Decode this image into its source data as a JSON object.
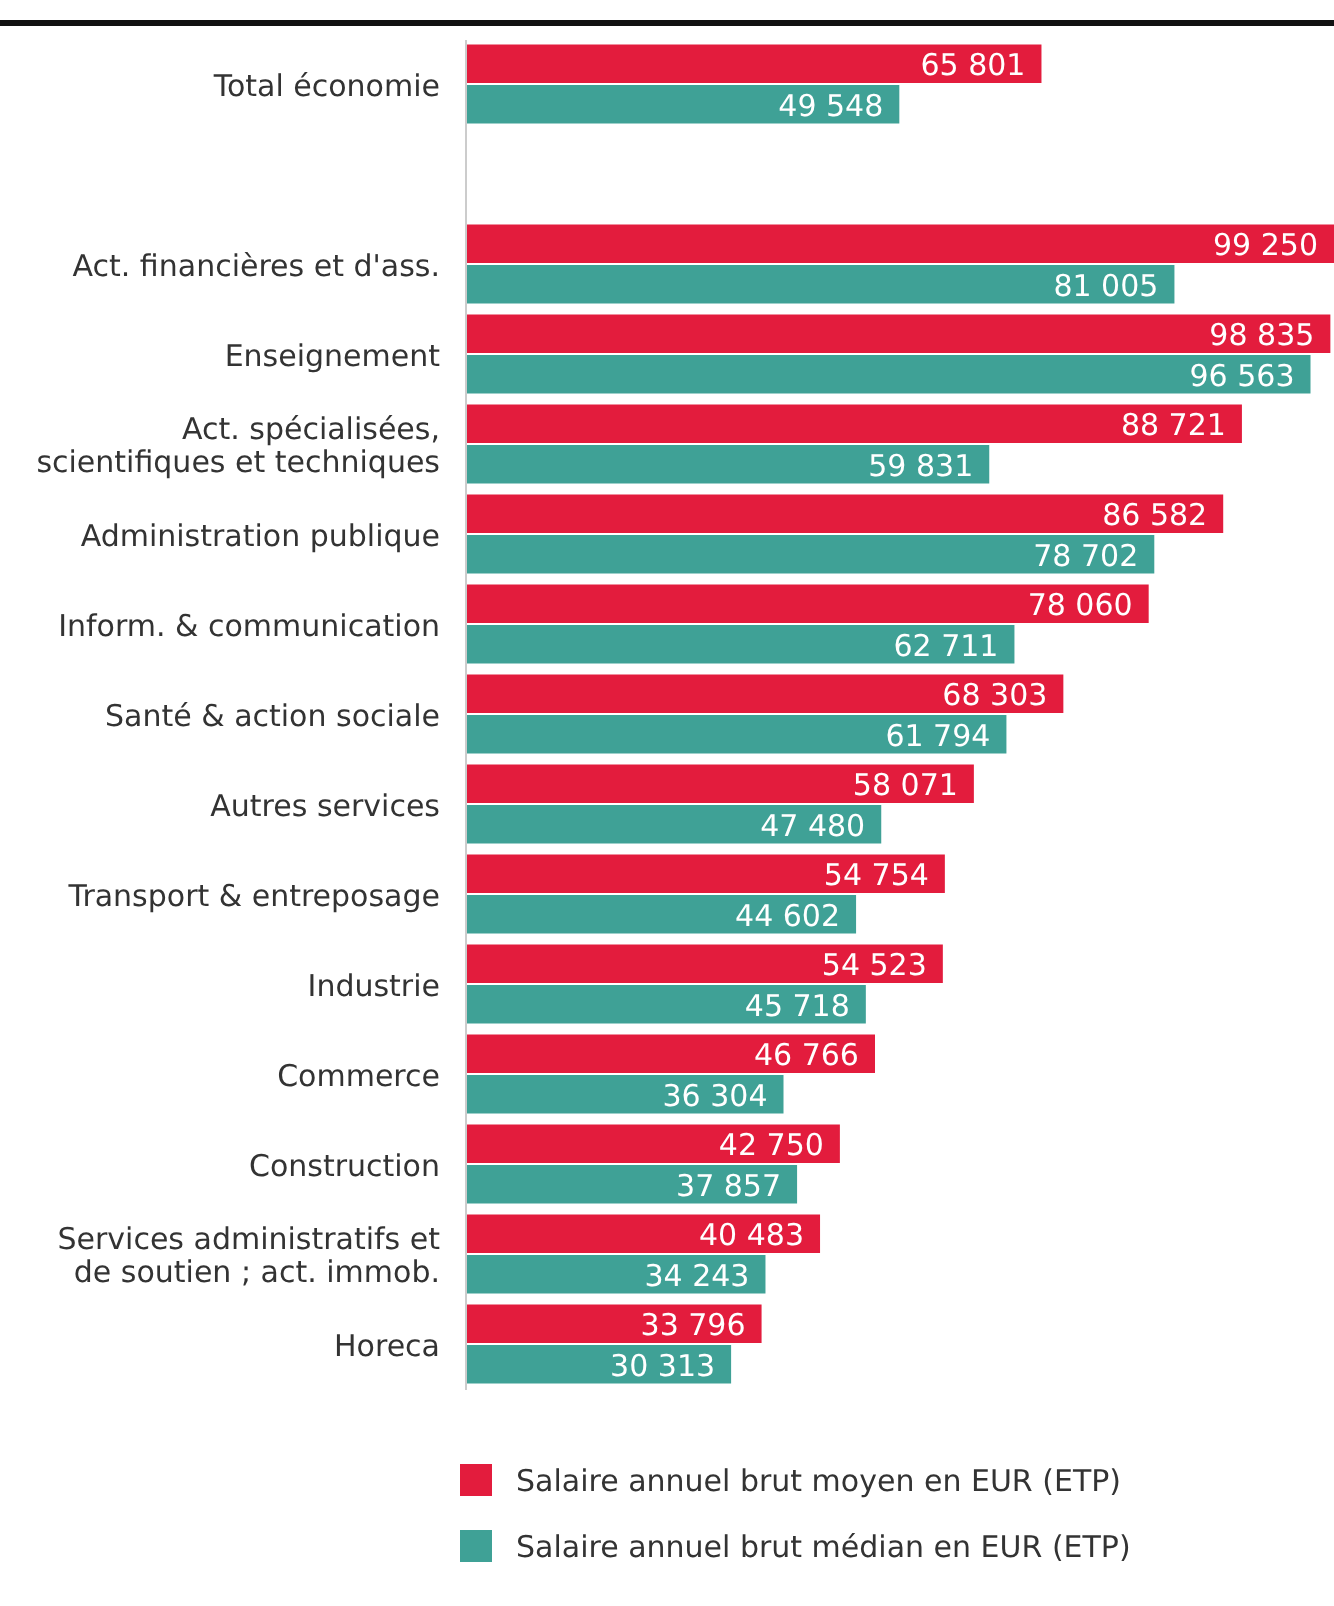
{
  "chart_data": {
    "type": "bar",
    "orientation": "horizontal",
    "data_labels": true,
    "legend": "bottom",
    "categories": [
      "Total économie",
      null,
      "Act. financières et d'ass.",
      "Enseignement",
      "Act. spécialisées, scientifiques et techniques",
      "Administration publique",
      "Inform. & communication",
      "Santé & action sociale",
      "Autres services",
      "Transport & entreposage",
      "Industrie",
      "Commerce",
      "Construction",
      "Services administratifs et de soutien ; act. immob.",
      "Horeca"
    ],
    "series": [
      {
        "name": "Salaire annuel brut moyen en EUR (ETP)",
        "color": "#e31c3d",
        "values": [
          65801,
          null,
          99250,
          98835,
          88721,
          86582,
          78060,
          68303,
          58071,
          54754,
          54523,
          46766,
          42750,
          40483,
          33796
        ]
      },
      {
        "name": "Salaire annuel brut médian en EUR (ETP)",
        "color": "#3fa196",
        "values": [
          49548,
          null,
          81005,
          96563,
          59831,
          78702,
          62711,
          61794,
          47480,
          44602,
          45718,
          36304,
          37857,
          34243,
          30313
        ]
      }
    ]
  }
}
